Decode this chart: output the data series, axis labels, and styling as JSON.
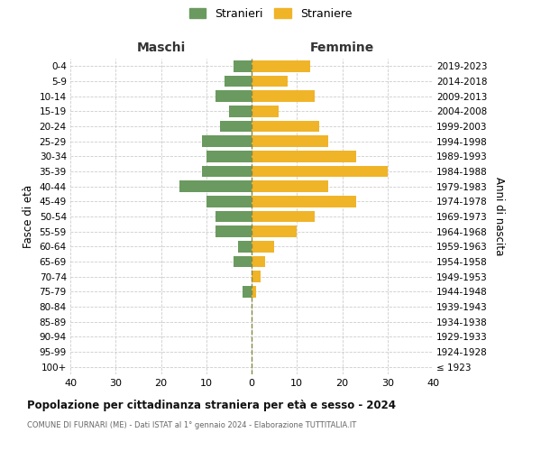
{
  "age_groups": [
    "100+",
    "95-99",
    "90-94",
    "85-89",
    "80-84",
    "75-79",
    "70-74",
    "65-69",
    "60-64",
    "55-59",
    "50-54",
    "45-49",
    "40-44",
    "35-39",
    "30-34",
    "25-29",
    "20-24",
    "15-19",
    "10-14",
    "5-9",
    "0-4"
  ],
  "birth_years": [
    "≤ 1923",
    "1924-1928",
    "1929-1933",
    "1934-1938",
    "1939-1943",
    "1944-1948",
    "1949-1953",
    "1954-1958",
    "1959-1963",
    "1964-1968",
    "1969-1973",
    "1974-1978",
    "1979-1983",
    "1984-1988",
    "1989-1993",
    "1994-1998",
    "1999-2003",
    "2004-2008",
    "2009-2013",
    "2014-2018",
    "2019-2023"
  ],
  "males": [
    0,
    0,
    0,
    0,
    0,
    2,
    0,
    4,
    3,
    8,
    8,
    10,
    16,
    11,
    10,
    11,
    7,
    5,
    8,
    6,
    4
  ],
  "females": [
    0,
    0,
    0,
    0,
    0,
    1,
    2,
    3,
    5,
    10,
    14,
    23,
    17,
    30,
    23,
    17,
    15,
    6,
    14,
    8,
    13
  ],
  "male_color": "#6a9a5f",
  "female_color": "#f0b429",
  "background_color": "#ffffff",
  "grid_color": "#cccccc",
  "title": "Popolazione per cittadinanza straniera per età e sesso - 2024",
  "subtitle": "COMUNE DI FURNARI (ME) - Dati ISTAT al 1° gennaio 2024 - Elaborazione TUTTITALIA.IT",
  "xlabel_left": "Maschi",
  "xlabel_right": "Femmine",
  "ylabel_left": "Fasce di età",
  "ylabel_right": "Anni di nascita",
  "legend_males": "Stranieri",
  "legend_females": "Straniere",
  "xlim": 40,
  "bar_height": 0.75
}
